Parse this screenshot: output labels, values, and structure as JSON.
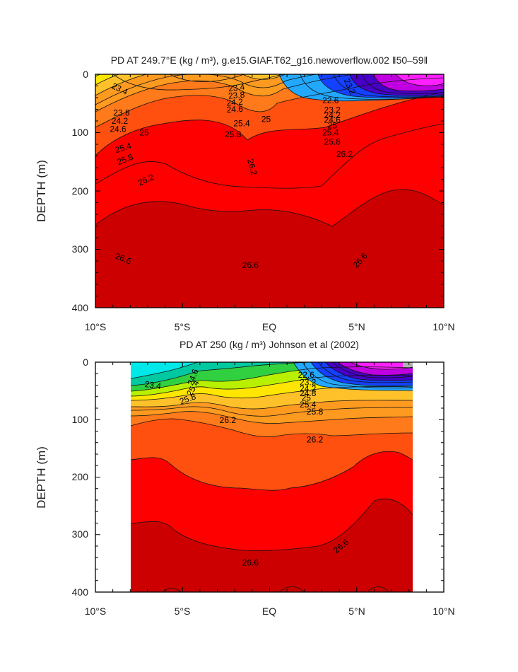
{
  "chart_data": [
    {
      "type": "heatmap",
      "title": "PD AT 249.7°E (kg / m³), g.e15.GIAF.T62_g16.newoverflow.002 ‖50–59‖",
      "xlabel": "",
      "ylabel": "DEPTH (m)",
      "xlim": [
        -10,
        10
      ],
      "ylim": [
        400,
        0
      ],
      "x_ticks": [
        "10°S",
        "5°S",
        "EQ",
        "5°N",
        "10°N"
      ],
      "y_ticks": [
        "0",
        "100",
        "200",
        "300",
        "400"
      ],
      "contour_interval": 0.2,
      "contour_labels": [
        {
          "text": "23.4",
          "x": -8.6,
          "y": 25,
          "rot": 25
        },
        {
          "text": "23.4",
          "x": -1.9,
          "y": 23,
          "rot": -8
        },
        {
          "text": "23.8",
          "x": -8.5,
          "y": 66,
          "rot": 0
        },
        {
          "text": "24.2",
          "x": -8.6,
          "y": 80,
          "rot": 0
        },
        {
          "text": "24.6",
          "x": -8.7,
          "y": 94,
          "rot": 0
        },
        {
          "text": "25",
          "x": -7.2,
          "y": 100,
          "rot": 0
        },
        {
          "text": "25.4",
          "x": -8.4,
          "y": 126,
          "rot": -18
        },
        {
          "text": "25.8",
          "x": -8.3,
          "y": 146,
          "rot": -22
        },
        {
          "text": "23.8",
          "x": -1.9,
          "y": 36,
          "rot": -5
        },
        {
          "text": "24.2",
          "x": -2.0,
          "y": 48,
          "rot": -5
        },
        {
          "text": "24.6",
          "x": -2.0,
          "y": 60,
          "rot": -4
        },
        {
          "text": "25",
          "x": -0.2,
          "y": 77,
          "rot": 0
        },
        {
          "text": "25.4",
          "x": -1.6,
          "y": 84,
          "rot": 0
        },
        {
          "text": "25.8",
          "x": -2.1,
          "y": 103,
          "rot": 0
        },
        {
          "text": "22.6",
          "x": 3.5,
          "y": 45,
          "rot": 0
        },
        {
          "text": "23.2",
          "x": 3.6,
          "y": 61,
          "rot": 0
        },
        {
          "text": "24.2",
          "x": 3.6,
          "y": 70,
          "rot": 0
        },
        {
          "text": "24.6",
          "x": 3.6,
          "y": 78,
          "rot": 0
        },
        {
          "text": "25",
          "x": 3.6,
          "y": 88,
          "rot": 0
        },
        {
          "text": "25.4",
          "x": 3.5,
          "y": 100,
          "rot": 0
        },
        {
          "text": "25.8",
          "x": 3.6,
          "y": 116,
          "rot": 0
        },
        {
          "text": "26.2",
          "x": 4.3,
          "y": 137,
          "rot": 0
        },
        {
          "text": "26.2",
          "x": -7.1,
          "y": 181,
          "rot": -25
        },
        {
          "text": "26.2",
          "x": -1.0,
          "y": 159,
          "rot": 75
        },
        {
          "text": "26.6",
          "x": -8.4,
          "y": 316,
          "rot": 22
        },
        {
          "text": "26.6",
          "x": -1.1,
          "y": 327,
          "rot": 0
        },
        {
          "text": "26.6",
          "x": 5.2,
          "y": 319,
          "rot": -48
        },
        {
          "text": "23.2",
          "x": 4.6,
          "y": 21,
          "rot": 65
        }
      ]
    },
    {
      "type": "heatmap",
      "title": "PD AT 250 (kg / m³) Johnson et al (2002)",
      "xlabel": "",
      "ylabel": "DEPTH (m)",
      "xlim": [
        -10,
        10
      ],
      "ylim": [
        400,
        0
      ],
      "x_ticks": [
        "10°S",
        "5°S",
        "EQ",
        "5°N",
        "10°N"
      ],
      "y_ticks": [
        "0",
        "100",
        "200",
        "300",
        "400"
      ],
      "data_x_range": [
        -8,
        8.2
      ],
      "contour_interval": 0.2,
      "contour_labels": [
        {
          "text": "23.4",
          "x": -6.7,
          "y": 40,
          "rot": 8
        },
        {
          "text": "24.6",
          "x": -4.4,
          "y": 26,
          "rot": -70
        },
        {
          "text": "25.4",
          "x": -4.4,
          "y": 45,
          "rot": -60
        },
        {
          "text": "25.8",
          "x": -4.7,
          "y": 64,
          "rot": -20
        },
        {
          "text": "22.6",
          "x": 2.1,
          "y": 22,
          "rot": 0
        },
        {
          "text": "23.2",
          "x": 2.2,
          "y": 35,
          "rot": 0
        },
        {
          "text": "24.2",
          "x": 2.2,
          "y": 46,
          "rot": 0
        },
        {
          "text": "24.8",
          "x": 2.2,
          "y": 54,
          "rot": 0
        },
        {
          "text": "25",
          "x": 2.1,
          "y": 62,
          "rot": 0
        },
        {
          "text": "25.4",
          "x": 2.2,
          "y": 74,
          "rot": 0
        },
        {
          "text": "25.8",
          "x": 2.6,
          "y": 86,
          "rot": 0
        },
        {
          "text": "26.2",
          "x": -2.4,
          "y": 101,
          "rot": 0
        },
        {
          "text": "26.2",
          "x": 2.6,
          "y": 135,
          "rot": 0
        },
        {
          "text": "26.6",
          "x": -1.1,
          "y": 349,
          "rot": 0
        },
        {
          "text": "26.6",
          "x": 4.1,
          "y": 320,
          "rot": -40
        }
      ]
    }
  ]
}
